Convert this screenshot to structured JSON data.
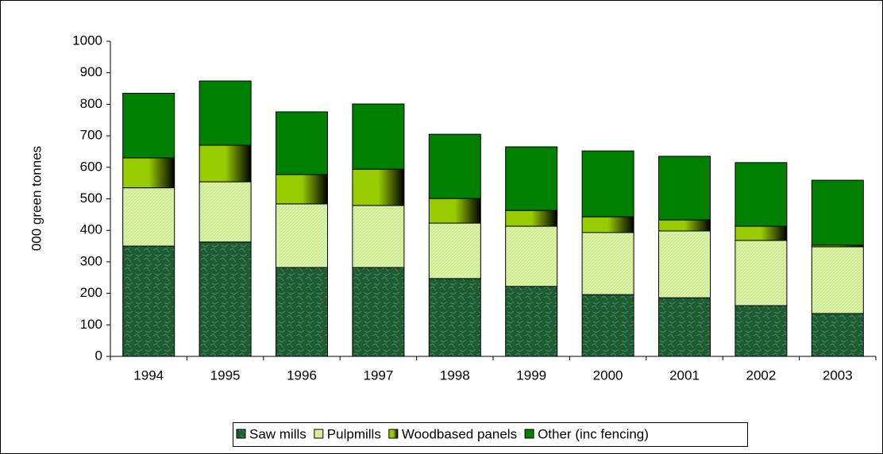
{
  "chart_data": {
    "type": "stacked-bar",
    "y_label": "000 green tonnes",
    "categories": [
      "1994",
      "1995",
      "1996",
      "1997",
      "1998",
      "1999",
      "2000",
      "2001",
      "2002",
      "2003"
    ],
    "series": [
      {
        "name": "Saw mills",
        "color": "#1f5c34",
        "values": [
          350,
          363,
          282,
          282,
          247,
          222,
          196,
          186,
          161,
          136
        ]
      },
      {
        "name": "Pulpmills",
        "color": "#cdeb8b",
        "values": [
          185,
          191,
          202,
          197,
          176,
          191,
          197,
          212,
          207,
          212
        ]
      },
      {
        "name": "Woodbased panels",
        "color": "#99cc00",
        "values": [
          95,
          116,
          93,
          115,
          78,
          50,
          50,
          35,
          45,
          5
        ]
      },
      {
        "name": "Other (inc fencing)",
        "color": "#008000",
        "values": [
          205,
          204,
          199,
          207,
          204,
          202,
          209,
          202,
          202,
          206
        ]
      }
    ],
    "ylim": [
      0,
      1000
    ],
    "yticks": [
      0,
      100,
      200,
      300,
      400,
      500,
      600,
      700,
      800,
      900,
      1000
    ]
  }
}
